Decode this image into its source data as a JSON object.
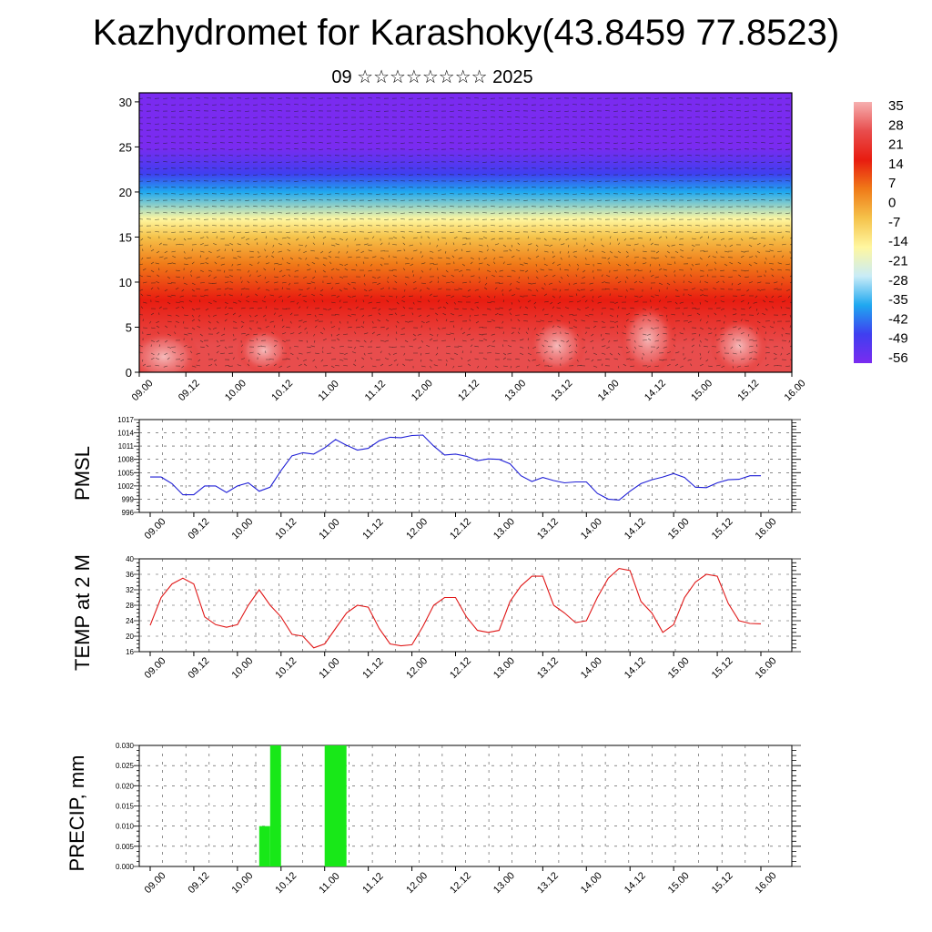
{
  "title": "Kazhydromet for Karashoky(43.8459 77.8523)",
  "subtitle": "09 ☆☆☆☆☆☆☆☆ 2025",
  "time_ticks": [
    "09.00",
    "09.12",
    "10.00",
    "10.12",
    "11.00",
    "11.12",
    "12.00",
    "12.12",
    "13.00",
    "13.12",
    "14.00",
    "14.12",
    "15.00",
    "15.12",
    "16.00"
  ],
  "colorbar": {
    "labels": [
      "35",
      "28",
      "21",
      "14",
      "7",
      "0",
      "-7",
      "-14",
      "-21",
      "-28",
      "-35",
      "-42",
      "-49",
      "-56"
    ]
  },
  "chart_data": [
    {
      "type": "heatmap",
      "name": "vertical temperature cross-section with wind vectors",
      "y_ticks": [
        "0",
        "5",
        "10",
        "15",
        "20",
        "25",
        "30"
      ],
      "ylim": [
        0,
        31
      ],
      "x_range": [
        "09.00",
        "16.00"
      ],
      "value_range": [
        -56,
        35
      ],
      "colorscale": [
        "#7a2bf0",
        "#3f3ff0",
        "#1fa8f0",
        "#c9ecf7",
        "#fff7a0",
        "#f5c24a",
        "#f07a18",
        "#e81c10",
        "#e84d4d",
        "#f6b0b0"
      ],
      "description_levels": {
        "levels_km": [
          0,
          3,
          8,
          12,
          15,
          17,
          20,
          22,
          25,
          27,
          31
        ],
        "temps": [
          30,
          28,
          24,
          14,
          2,
          -14,
          -28,
          -38,
          -50,
          -56,
          -56
        ]
      }
    },
    {
      "type": "line",
      "ylabel": "PMSL",
      "ylim": [
        996,
        1017
      ],
      "y_ticks": [
        "1017",
        "1014",
        "1011",
        "1008",
        "1005",
        "1002",
        "999",
        "996"
      ],
      "color": "#1f1fd6",
      "x_hours": [
        0,
        3,
        6,
        9,
        12,
        15,
        18,
        21,
        24,
        27,
        30,
        33,
        36,
        39,
        42,
        45,
        48,
        51,
        54,
        57,
        60,
        63,
        66,
        69,
        72,
        75,
        78,
        81,
        84,
        87,
        90,
        93,
        96,
        99,
        102,
        105,
        108,
        111,
        114,
        117,
        120,
        123,
        126,
        129,
        132,
        135,
        138,
        141,
        144,
        147,
        150,
        153,
        156,
        159,
        162,
        165,
        168
      ],
      "values": [
        1004,
        1004,
        1002.5,
        1000,
        1000,
        1002,
        1002,
        1000.5,
        1002,
        1002.7,
        1000.8,
        1001.7,
        1005.5,
        1008.8,
        1009.5,
        1009.2,
        1010.6,
        1012.5,
        1011.2,
        1010.1,
        1010.5,
        1012.2,
        1013,
        1012.9,
        1013.4,
        1013.5,
        1011,
        1009,
        1009.2,
        1008.7,
        1007.7,
        1008.1,
        1008,
        1007,
        1004.3,
        1003,
        1003.9,
        1003.2,
        1002.7,
        1002.9,
        1002.9,
        1000.3,
        999,
        998.8,
        1000.8,
        1002.5,
        1003.4,
        1004,
        1004.8,
        1003.9,
        1001.7,
        1001.6,
        1002.7,
        1003.4,
        1003.5,
        1004.3,
        1004.3
      ]
    },
    {
      "type": "line",
      "ylabel": "TEMP at 2 M",
      "ylim": [
        16,
        40
      ],
      "y_ticks": [
        "40",
        "36",
        "32",
        "28",
        "24",
        "20",
        "16"
      ],
      "color": "#e01818",
      "x_hours": [
        0,
        3,
        6,
        9,
        12,
        15,
        18,
        21,
        24,
        27,
        30,
        33,
        36,
        39,
        42,
        45,
        48,
        51,
        54,
        57,
        60,
        63,
        66,
        69,
        72,
        75,
        78,
        81,
        84,
        87,
        90,
        93,
        96,
        99,
        102,
        105,
        108,
        111,
        114,
        117,
        120,
        123,
        126,
        129,
        132,
        135,
        138,
        141,
        144,
        147,
        150,
        153,
        156,
        159,
        162,
        165,
        168
      ],
      "values": [
        22.8,
        30,
        33.5,
        35,
        33.5,
        25,
        23,
        22.3,
        23,
        28,
        32,
        28,
        25,
        20.5,
        20,
        17,
        18,
        22,
        26,
        28,
        27.5,
        22,
        18,
        17.5,
        17.8,
        22.5,
        28,
        30,
        30,
        25,
        21.5,
        21,
        21.5,
        29,
        33,
        35.5,
        35.5,
        28,
        26,
        23.5,
        24,
        30,
        35,
        37.5,
        37,
        29,
        26,
        21,
        23,
        30,
        34,
        36,
        35.5,
        28.5,
        24,
        23.3,
        23.2
      ]
    },
    {
      "type": "bar",
      "ylabel": "PRECIP, mm",
      "ylim": [
        0,
        0.03
      ],
      "y_ticks": [
        "0.030",
        "0.025",
        "0.020",
        "0.015",
        "0.010",
        "0.005",
        "0.000"
      ],
      "color": "#18e818",
      "bars": [
        {
          "from_hour": 30,
          "to_hour": 33,
          "value": 0.01
        },
        {
          "from_hour": 33,
          "to_hour": 36,
          "value": 0.03
        },
        {
          "from_hour": 48,
          "to_hour": 54,
          "value": 0.03
        }
      ]
    }
  ]
}
